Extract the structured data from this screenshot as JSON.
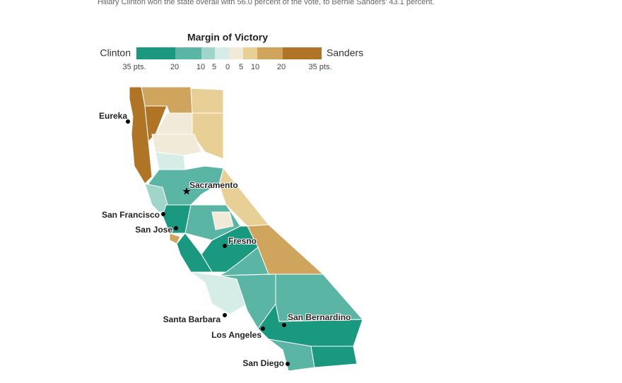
{
  "caption": "Hillary Clinton won the state overall with 56.0 percent of the vote, to Bernie Sanders' 43.1 percent.",
  "legend": {
    "title": "Margin of Victory",
    "left": "Clinton",
    "right": "Sanders",
    "ticks": [
      "35 pts.",
      "20",
      "10",
      "5",
      "0",
      "5",
      "10",
      "20",
      "35 pts."
    ]
  },
  "cities": [
    {
      "name": "Eureka"
    },
    {
      "name": "Sacramento"
    },
    {
      "name": "San Francisco"
    },
    {
      "name": "San Jose"
    },
    {
      "name": "Fresno"
    },
    {
      "name": "Santa Barbara"
    },
    {
      "name": "Los Angeles"
    },
    {
      "name": "San Bernardino"
    },
    {
      "name": "San Diego"
    }
  ]
}
